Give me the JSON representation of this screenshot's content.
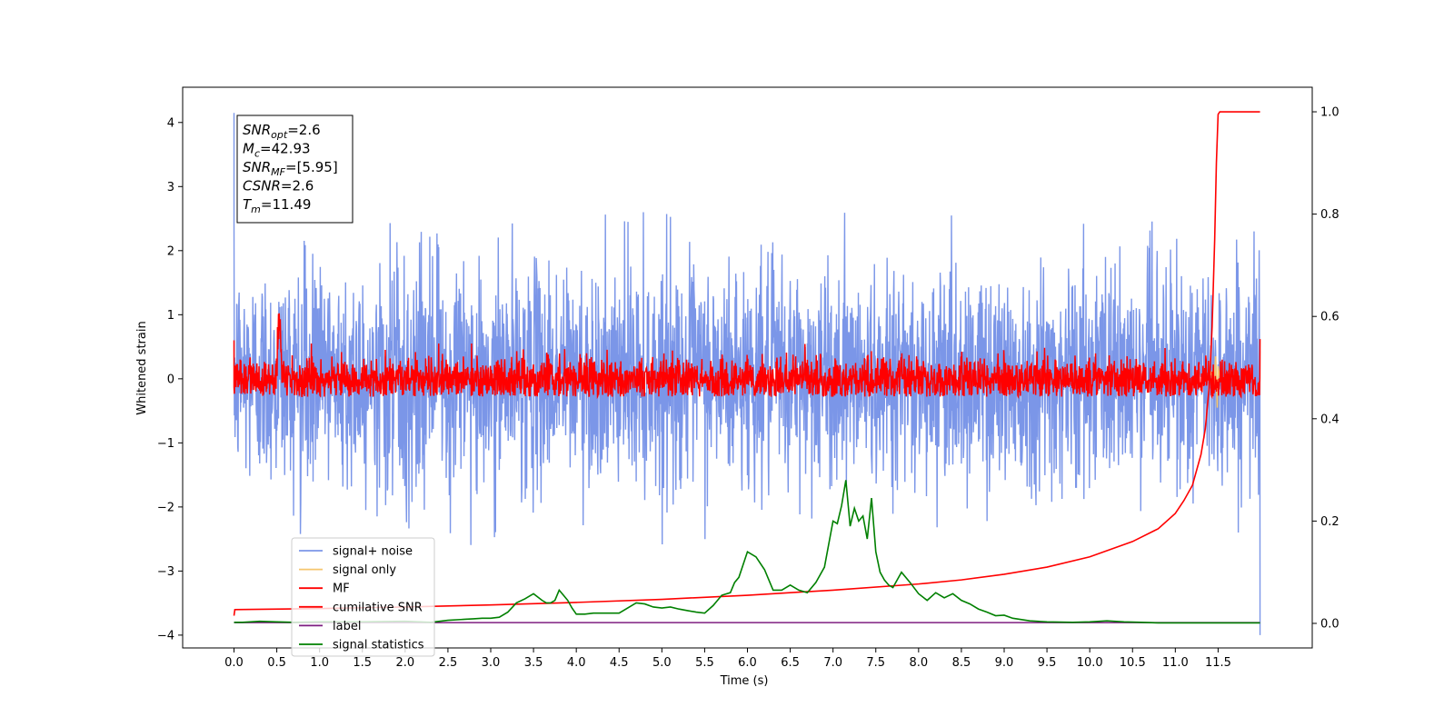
{
  "chart_data": {
    "type": "line",
    "xlabel": "Time (s)",
    "ylabel": "Whitened strain",
    "xlim": [
      -0.6,
      12.6
    ],
    "ylim": [
      -4.2,
      4.55
    ],
    "y2lim": [
      -0.048,
      1.048
    ],
    "x_ticks": [
      "0.0",
      "0.5",
      "1.0",
      "1.5",
      "2.0",
      "2.5",
      "3.0",
      "3.5",
      "4.0",
      "4.5",
      "5.0",
      "5.5",
      "6.0",
      "6.5",
      "7.0",
      "7.5",
      "8.0",
      "8.5",
      "9.0",
      "9.5",
      "10.0",
      "10.5",
      "11.0",
      "11.5"
    ],
    "x_tick_values": [
      0,
      0.5,
      1,
      1.5,
      2,
      2.5,
      3,
      3.5,
      4,
      4.5,
      5,
      5.5,
      6,
      6.5,
      7,
      7.5,
      8,
      8.5,
      9,
      9.5,
      10,
      10.5,
      11,
      11.5
    ],
    "y_ticks": [
      "−4",
      "−3",
      "−2",
      "−1",
      "0",
      "1",
      "2",
      "3",
      "4"
    ],
    "y_tick_values": [
      -4,
      -3,
      -2,
      -1,
      0,
      1,
      2,
      3,
      4
    ],
    "y2_ticks": [
      "0.0",
      "0.2",
      "0.4",
      "0.6",
      "0.8",
      "1.0"
    ],
    "y2_tick_values": [
      0,
      0.2,
      0.4,
      0.6,
      0.8,
      1.0
    ],
    "grid": false,
    "legend_position": "lower-left",
    "annotation": {
      "lines": [
        {
          "main": "SNR",
          "sub": "opt",
          "value": "=2.6"
        },
        {
          "main": "M",
          "sub": "c",
          "value": "=42.93"
        },
        {
          "main": "SNR",
          "sub": "MF",
          "value": "=[5.95]"
        },
        {
          "main": "CSNR",
          "sub": "",
          "value": "=2.6"
        },
        {
          "main": "T",
          "sub": "m",
          "value": "=11.49"
        }
      ]
    },
    "series": [
      {
        "name": "signal+ noise",
        "color": "#7b96e8",
        "axis": "left",
        "description_range": {
          "min": -2.6,
          "max": 4.15
        },
        "noise": {
          "mean": 0.05,
          "sd": 0.85,
          "x_start": 0.0,
          "x_end": 11.99,
          "step": 0.004
        }
      },
      {
        "name": "signal only",
        "color": "#f5c66e",
        "axis": "left",
        "x": [
          11.38,
          11.42,
          11.45,
          11.47,
          11.49,
          11.5,
          11.52
        ],
        "y": [
          0,
          0.1,
          -0.2,
          0.35,
          -0.45,
          0.2,
          0
        ]
      },
      {
        "name": "MF",
        "color": "#ff0000",
        "axis": "left",
        "noise": {
          "mean": 0.0,
          "sd": 0.17,
          "x_start": 0.0,
          "x_end": 11.99,
          "step": 0.004
        },
        "bump": {
          "x": 0.53,
          "y": 1.0
        }
      },
      {
        "name": "cumilative SNR",
        "color": "#ff0000",
        "axis": "right",
        "x": [
          0.0,
          0.01,
          1,
          2,
          3,
          4,
          5,
          6,
          7,
          8,
          8.5,
          9,
          9.5,
          10,
          10.5,
          10.8,
          11.0,
          11.1,
          11.2,
          11.3,
          11.35,
          11.4,
          11.43,
          11.46,
          11.48,
          11.5,
          11.52,
          11.6,
          11.99
        ],
        "y": [
          0.015,
          0.027,
          0.029,
          0.032,
          0.036,
          0.041,
          0.047,
          0.055,
          0.065,
          0.077,
          0.085,
          0.096,
          0.11,
          0.13,
          0.16,
          0.185,
          0.215,
          0.24,
          0.27,
          0.33,
          0.38,
          0.47,
          0.58,
          0.75,
          0.9,
          0.995,
          1.0,
          1.0,
          1.0
        ]
      },
      {
        "name": "label",
        "color": "#7e1e80",
        "axis": "right",
        "x": [
          0.0,
          11.99
        ],
        "y": [
          0.0015,
          0.0015
        ]
      },
      {
        "name": "signal statistics",
        "color": "#008000",
        "axis": "right",
        "x": [
          0.0,
          0.1,
          0.3,
          0.5,
          0.7,
          1.0,
          1.5,
          2.0,
          2.3,
          2.5,
          2.7,
          2.8,
          2.9,
          3.0,
          3.1,
          3.2,
          3.3,
          3.4,
          3.5,
          3.6,
          3.65,
          3.7,
          3.75,
          3.8,
          3.85,
          3.9,
          3.95,
          4.0,
          4.1,
          4.2,
          4.3,
          4.5,
          4.7,
          4.8,
          4.9,
          5.0,
          5.1,
          5.2,
          5.3,
          5.4,
          5.5,
          5.6,
          5.7,
          5.8,
          5.85,
          5.9,
          6.0,
          6.1,
          6.2,
          6.3,
          6.4,
          6.5,
          6.6,
          6.7,
          6.8,
          6.9,
          7.0,
          7.05,
          7.1,
          7.15,
          7.2,
          7.25,
          7.3,
          7.35,
          7.4,
          7.45,
          7.5,
          7.55,
          7.6,
          7.65,
          7.7,
          7.8,
          7.9,
          8.0,
          8.1,
          8.2,
          8.3,
          8.4,
          8.5,
          8.6,
          8.7,
          8.8,
          8.9,
          9.0,
          9.1,
          9.3,
          9.5,
          9.8,
          10.0,
          10.2,
          10.4,
          10.6,
          10.8,
          11.0,
          11.5,
          11.99
        ],
        "y": [
          0.002,
          0.002,
          0.004,
          0.003,
          0.002,
          0.003,
          0.003,
          0.004,
          0.002,
          0.006,
          0.008,
          0.009,
          0.01,
          0.01,
          0.012,
          0.022,
          0.04,
          0.048,
          0.058,
          0.045,
          0.04,
          0.04,
          0.045,
          0.065,
          0.055,
          0.045,
          0.03,
          0.018,
          0.018,
          0.02,
          0.02,
          0.02,
          0.04,
          0.038,
          0.032,
          0.03,
          0.032,
          0.028,
          0.025,
          0.022,
          0.02,
          0.035,
          0.055,
          0.06,
          0.08,
          0.09,
          0.14,
          0.13,
          0.105,
          0.065,
          0.065,
          0.075,
          0.065,
          0.06,
          0.08,
          0.11,
          0.2,
          0.195,
          0.23,
          0.28,
          0.19,
          0.225,
          0.2,
          0.21,
          0.165,
          0.245,
          0.14,
          0.1,
          0.085,
          0.075,
          0.07,
          0.1,
          0.08,
          0.058,
          0.045,
          0.06,
          0.05,
          0.058,
          0.045,
          0.038,
          0.028,
          0.022,
          0.015,
          0.016,
          0.01,
          0.005,
          0.003,
          0.002,
          0.003,
          0.005,
          0.003,
          0.002,
          0.001,
          0.001,
          0.001,
          0.001
        ]
      }
    ]
  }
}
